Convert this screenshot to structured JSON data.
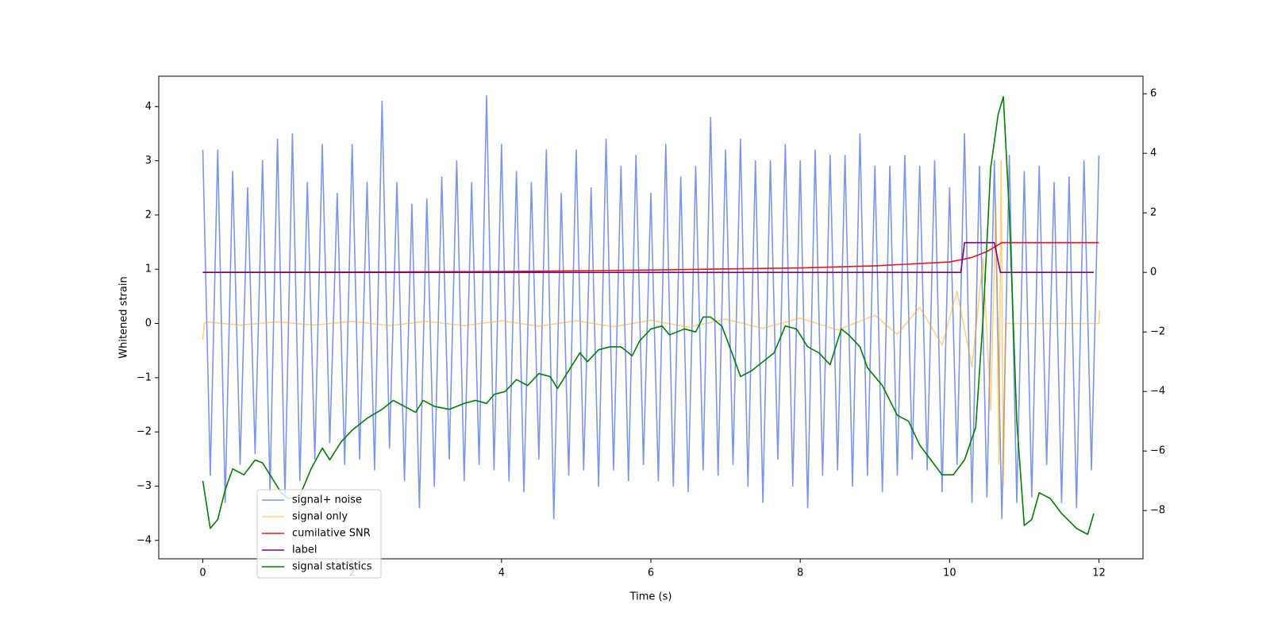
{
  "chart_data": {
    "type": "line",
    "xlabel": "Time (s)",
    "ylabel": "Whitened strain",
    "xlim": [
      -0.59,
      12.59
    ],
    "xticks": [
      0,
      2,
      4,
      6,
      8,
      10,
      12
    ],
    "ylim": [
      -4.34,
      4.56
    ],
    "yticks": [
      {
        "value": -4,
        "label": "−4"
      },
      {
        "value": -3,
        "label": "−3"
      },
      {
        "value": -2,
        "label": "−2"
      },
      {
        "value": -1,
        "label": "−1"
      },
      0,
      1,
      2,
      3,
      4
    ],
    "y2lim": [
      -9.62,
      6.59
    ],
    "y2ticks": [
      {
        "value": -8,
        "label": "−8"
      },
      {
        "value": -6,
        "label": "−6"
      },
      {
        "value": -4,
        "label": "−4"
      },
      {
        "value": -2,
        "label": "−2"
      },
      0,
      2,
      4,
      6
    ],
    "series": [
      {
        "name": "signal+ noise",
        "color": "#4169e1",
        "opacity": 0.7,
        "x": [
          0,
          0.1,
          0.2,
          0.3,
          0.4,
          0.5,
          0.6,
          0.7,
          0.8,
          0.9,
          1,
          1.1,
          1.2,
          1.3,
          1.4,
          1.5,
          1.6,
          1.7,
          1.8,
          1.9,
          2,
          2.1,
          2.2,
          2.3,
          2.4,
          2.5,
          2.6,
          2.7,
          2.8,
          2.9,
          3,
          3.1,
          3.2,
          3.3,
          3.4,
          3.5,
          3.6,
          3.7,
          3.8,
          3.9,
          4,
          4.1,
          4.2,
          4.3,
          4.4,
          4.5,
          4.6,
          4.7,
          4.8,
          4.9,
          5,
          5.1,
          5.2,
          5.3,
          5.4,
          5.5,
          5.6,
          5.7,
          5.8,
          5.9,
          6,
          6.1,
          6.2,
          6.3,
          6.4,
          6.5,
          6.6,
          6.7,
          6.8,
          6.9,
          7,
          7.1,
          7.2,
          7.3,
          7.4,
          7.5,
          7.6,
          7.7,
          7.8,
          7.9,
          8,
          8.1,
          8.2,
          8.3,
          8.4,
          8.5,
          8.6,
          8.7,
          8.8,
          8.9,
          9,
          9.1,
          9.2,
          9.3,
          9.4,
          9.5,
          9.6,
          9.7,
          9.8,
          9.9,
          10,
          10.1,
          10.2,
          10.3,
          10.4,
          10.5,
          10.6,
          10.7,
          10.8,
          10.9,
          11,
          11.1,
          11.2,
          11.3,
          11.4,
          11.5,
          11.6,
          11.7,
          11.8,
          11.9,
          12
        ],
        "values": [
          3.2,
          -2.8,
          3.2,
          -3.3,
          2.8,
          -2.6,
          2.5,
          -2.4,
          3.0,
          -3.1,
          3.4,
          -3.2,
          3.5,
          -2.9,
          2.6,
          -2.5,
          3.3,
          -2.2,
          2.4,
          -2.6,
          3.3,
          -2.5,
          2.6,
          -2.7,
          4.1,
          -2.3,
          2.6,
          -2.9,
          2.2,
          -3.4,
          2.3,
          -3.0,
          2.7,
          -2.5,
          3.0,
          -2.9,
          2.6,
          -2.6,
          4.2,
          -2.7,
          3.3,
          -2.9,
          2.8,
          -3.1,
          2.6,
          -2.5,
          3.2,
          -3.6,
          2.4,
          -2.8,
          3.2,
          -2.7,
          2.5,
          -3.0,
          3.4,
          -2.7,
          2.9,
          -2.9,
          3.1,
          -2.6,
          2.4,
          -2.9,
          3.3,
          -3.0,
          2.7,
          -3.1,
          2.9,
          -2.7,
          3.8,
          -2.8,
          3.2,
          -2.6,
          3.4,
          -3.0,
          3.0,
          -3.3,
          3.0,
          -2.5,
          3.3,
          -3.0,
          3.0,
          -3.4,
          3.2,
          -2.8,
          3.1,
          -2.7,
          3.1,
          -3.0,
          3.5,
          -2.8,
          2.9,
          -3.1,
          2.9,
          -2.8,
          3.1,
          -2.5,
          2.9,
          -2.7,
          3.0,
          -3.1,
          2.5,
          -2.6,
          3.5,
          -3.3,
          2.9,
          -3.2,
          3.0,
          -3.6,
          3.1,
          -3.3,
          2.8,
          -3.2,
          2.9,
          -2.6,
          2.6,
          -3.3,
          2.7,
          -3.4,
          3.0,
          -2.7,
          3.1
        ]
      },
      {
        "name": "signal only",
        "color": "#ffa500",
        "opacity": 0.5,
        "x": [
          0,
          0.02,
          0.05,
          0.5,
          1,
          1.5,
          2,
          2.5,
          3,
          3.5,
          4,
          4.5,
          5,
          5.5,
          6,
          6.5,
          7,
          7.5,
          8,
          8.5,
          9,
          9.3,
          9.6,
          9.9,
          10.1,
          10.3,
          10.45,
          10.55,
          10.62,
          10.66,
          10.69,
          10.72,
          10.75,
          12,
          12.01
        ],
        "values": [
          -0.3,
          0,
          0.03,
          -0.03,
          0.03,
          -0.03,
          0.04,
          -0.04,
          0.04,
          -0.04,
          0.05,
          -0.05,
          0.05,
          -0.06,
          0.06,
          -0.07,
          0.08,
          -0.09,
          0.1,
          -0.12,
          0.15,
          -0.2,
          0.3,
          -0.4,
          0.6,
          -0.8,
          1.2,
          -1.6,
          2.2,
          -2.6,
          3.0,
          -3.0,
          0,
          0,
          0.25
        ]
      },
      {
        "name": "cumilative SNR",
        "color": "#e8141e",
        "axis": "y2",
        "x": [
          0,
          2,
          4,
          6,
          8,
          9,
          10,
          10.3,
          10.5,
          10.6,
          10.7,
          12
        ],
        "values": [
          0,
          0.01,
          0.03,
          0.08,
          0.15,
          0.22,
          0.35,
          0.5,
          0.7,
          0.85,
          1,
          1
        ]
      },
      {
        "name": "label",
        "color": "#800080",
        "axis": "y2",
        "x": [
          0,
          10.15,
          10.2,
          10.6,
          10.68,
          11.93
        ],
        "values": [
          0,
          0,
          1,
          1,
          0,
          0
        ]
      },
      {
        "name": "signal statistics",
        "color": "#008000",
        "axis": "y2",
        "x": [
          0,
          0.1,
          0.2,
          0.3,
          0.4,
          0.55,
          0.7,
          0.8,
          0.95,
          1.05,
          1.15,
          1.3,
          1.45,
          1.6,
          1.7,
          1.85,
          2.0,
          2.2,
          2.4,
          2.55,
          2.7,
          2.85,
          2.95,
          3.1,
          3.3,
          3.5,
          3.65,
          3.8,
          3.9,
          4.05,
          4.2,
          4.35,
          4.5,
          4.65,
          4.75,
          4.9,
          5.05,
          5.15,
          5.3,
          5.45,
          5.6,
          5.75,
          5.85,
          6.0,
          6.15,
          6.25,
          6.45,
          6.6,
          6.7,
          6.8,
          6.95,
          7.1,
          7.2,
          7.35,
          7.5,
          7.65,
          7.8,
          7.95,
          8.1,
          8.25,
          8.4,
          8.55,
          8.65,
          8.8,
          8.9,
          9.1,
          9.3,
          9.45,
          9.6,
          9.75,
          9.9,
          10.05,
          10.2,
          10.35,
          10.45,
          10.55,
          10.65,
          10.72,
          10.8,
          10.9,
          11.0,
          11.1,
          11.2,
          11.35,
          11.5,
          11.7,
          11.85,
          11.93
        ],
        "values": [
          -7.0,
          -8.6,
          -8.3,
          -7.3,
          -6.6,
          -6.8,
          -6.3,
          -6.4,
          -7.0,
          -7.4,
          -7.6,
          -7.5,
          -6.6,
          -5.9,
          -6.3,
          -5.7,
          -5.3,
          -4.9,
          -4.6,
          -4.3,
          -4.5,
          -4.7,
          -4.3,
          -4.5,
          -4.6,
          -4.4,
          -4.3,
          -4.4,
          -4.1,
          -4.0,
          -3.6,
          -3.8,
          -3.4,
          -3.5,
          -3.9,
          -3.3,
          -2.7,
          -3.0,
          -2.6,
          -2.5,
          -2.5,
          -2.8,
          -2.3,
          -1.9,
          -1.8,
          -2.1,
          -1.9,
          -2.0,
          -1.5,
          -1.5,
          -1.8,
          -2.8,
          -3.5,
          -3.3,
          -3.0,
          -2.7,
          -1.8,
          -1.9,
          -2.5,
          -2.7,
          -3.1,
          -1.9,
          -2.1,
          -2.5,
          -3.2,
          -3.8,
          -4.8,
          -5.0,
          -5.8,
          -6.3,
          -6.8,
          -6.8,
          -6.3,
          -5.2,
          -1.5,
          3.5,
          5.3,
          5.9,
          2.0,
          -5.0,
          -8.5,
          -8.3,
          -7.4,
          -7.6,
          -8.1,
          -8.6,
          -8.8,
          -8.1
        ]
      }
    ]
  }
}
